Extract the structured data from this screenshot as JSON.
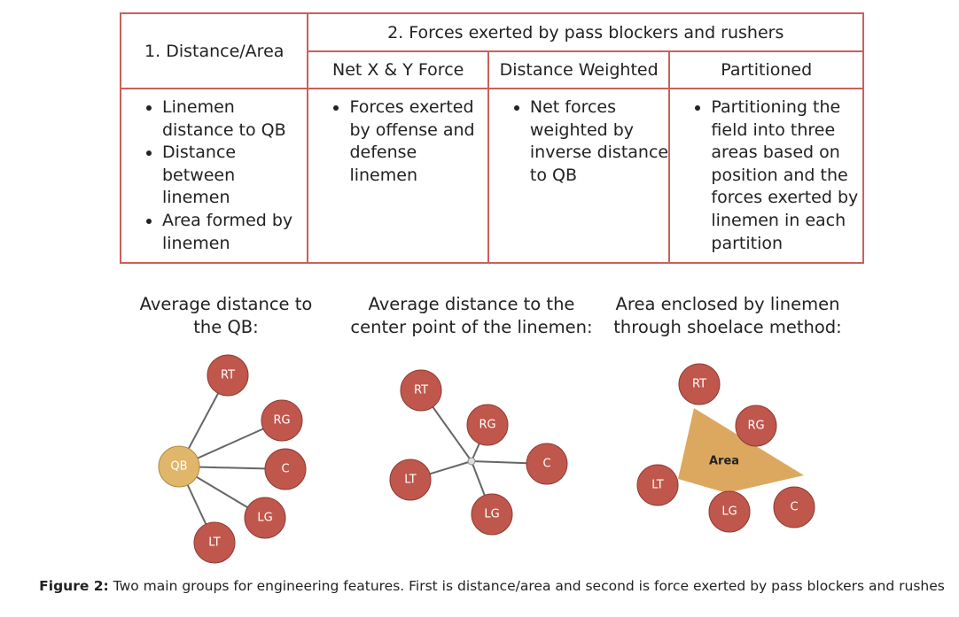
{
  "table": {
    "header": {
      "group1": "1.  Distance/Area",
      "group2": "2. Forces exerted by pass blockers and rushers",
      "subheaders": [
        "Net X & Y Force",
        "Distance Weighted",
        "Partitioned"
      ]
    },
    "cells": [
      [
        "Linemen distance to QB",
        "Distance between linemen",
        "Area formed by linemen"
      ],
      [
        "Forces exerted by offense and defense linemen"
      ],
      [
        "Net forces weighted by inverse distance to QB"
      ],
      [
        "Partitioning the field into three areas based on position and the forces exerted by linemen in each partition"
      ]
    ]
  },
  "diagrams": [
    {
      "title_lines": [
        "Average distance to",
        "the QB:"
      ],
      "nodes": [
        "RT",
        "RG",
        "C",
        "LG",
        "LT",
        "QB"
      ]
    },
    {
      "title_lines": [
        "Average distance to the",
        "center point of the linemen:"
      ],
      "nodes": [
        "RT",
        "RG",
        "C",
        "LG",
        "LT"
      ]
    },
    {
      "title_lines": [
        "Area enclosed by linemen",
        "through shoelace method:"
      ],
      "nodes": [
        "RT",
        "RG",
        "LT",
        "LG",
        "C"
      ],
      "area_label": "Area"
    }
  ],
  "caption": {
    "label": "Figure 2:",
    "text": " Two main groups for engineering features. First is distance/area and second is force exerted by pass blockers and rushes"
  }
}
